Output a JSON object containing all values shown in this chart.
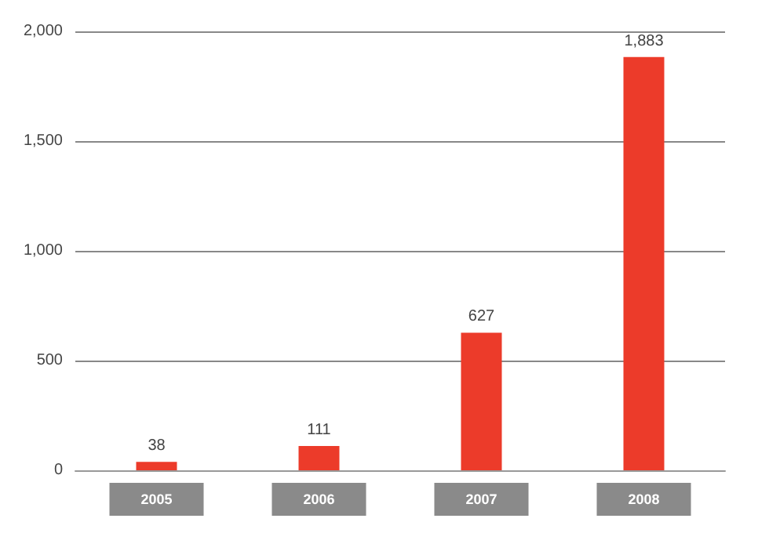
{
  "chart_data": {
    "type": "bar",
    "categories": [
      "2005",
      "2006",
      "2007",
      "2008"
    ],
    "values": [
      38,
      111,
      627,
      1883
    ],
    "value_labels": [
      "38",
      "111",
      "627",
      "1,883"
    ],
    "color": "#ec3b2a",
    "ylim": [
      0,
      2000
    ],
    "yticks": [
      0,
      500,
      {
        "value": 1000,
        "label": "1,000"
      },
      {
        "value": 1500,
        "label": "1,500"
      },
      {
        "value": 2000,
        "label": "2,000"
      }
    ],
    "grid": "y"
  }
}
